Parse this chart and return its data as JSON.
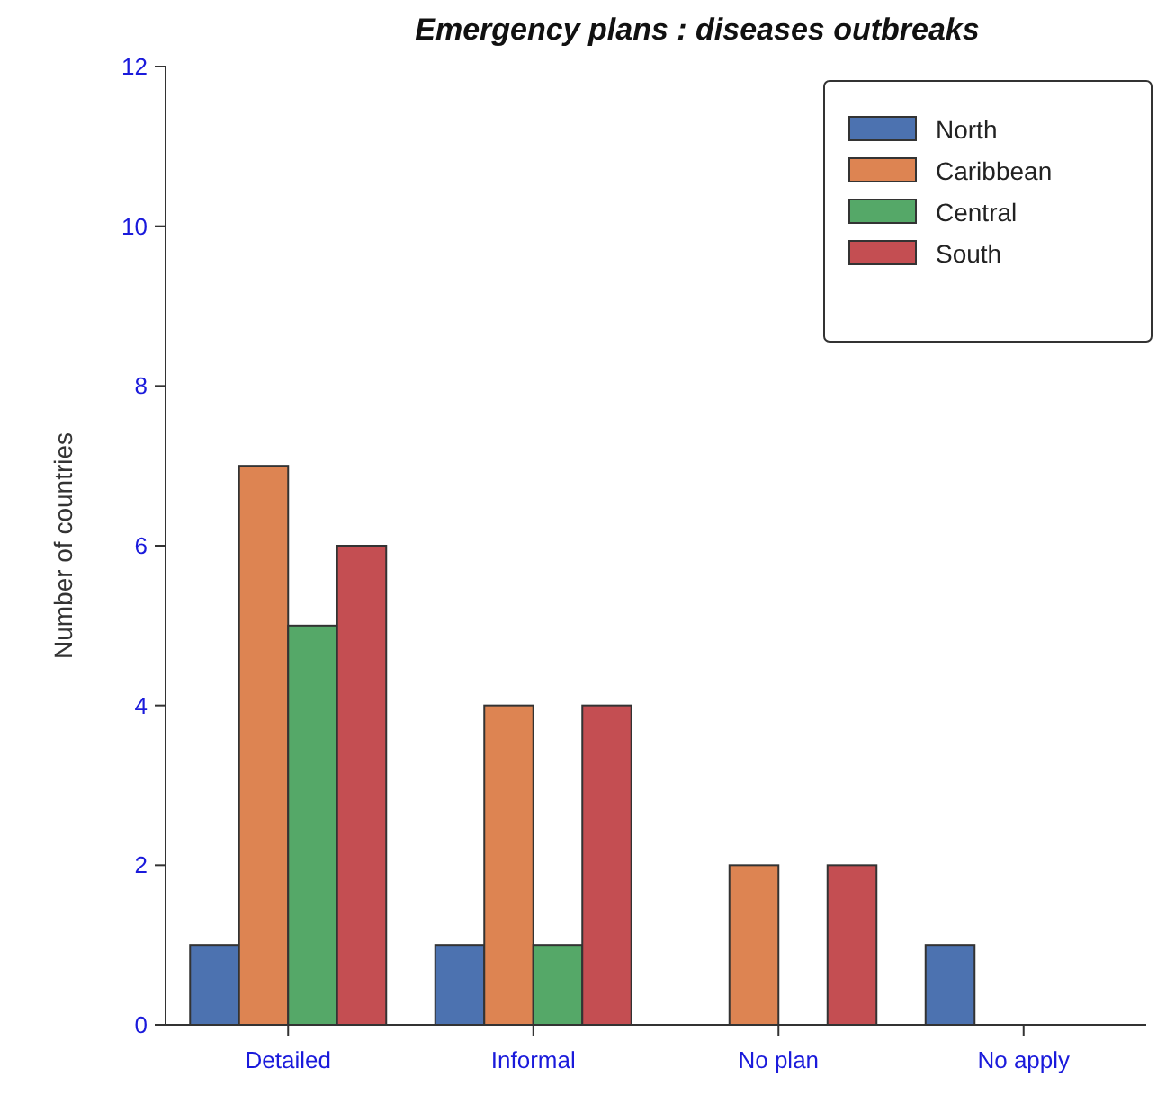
{
  "chart_data": {
    "type": "bar",
    "title": "Emergency plans : diseases outbreaks",
    "ylabel": "Number of countries",
    "categories": [
      "Detailed",
      "Informal",
      "No plan",
      "No apply"
    ],
    "series": [
      {
        "name": "North",
        "color": "#4c72b0",
        "values": [
          1,
          1,
          0,
          1
        ]
      },
      {
        "name": "Caribbean",
        "color": "#dd8452",
        "values": [
          7,
          4,
          2,
          0
        ]
      },
      {
        "name": "Central",
        "color": "#55a868",
        "values": [
          5,
          1,
          0,
          0
        ]
      },
      {
        "name": "South",
        "color": "#c44e52",
        "values": [
          6,
          4,
          2,
          0
        ]
      }
    ],
    "ylim": [
      0,
      12
    ],
    "yticks": [
      0,
      2,
      4,
      6,
      8,
      10,
      12
    ],
    "grid": false,
    "legend": "top right"
  }
}
